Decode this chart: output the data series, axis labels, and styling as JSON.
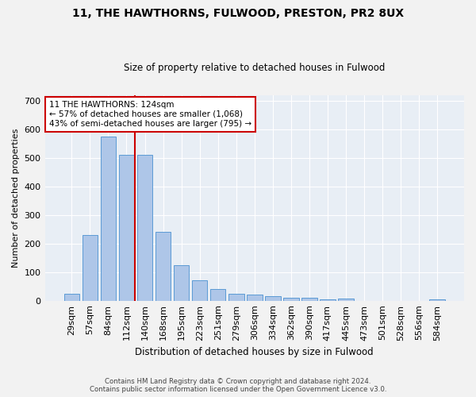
{
  "title": "11, THE HAWTHORNS, FULWOOD, PRESTON, PR2 8UX",
  "subtitle": "Size of property relative to detached houses in Fulwood",
  "xlabel": "Distribution of detached houses by size in Fulwood",
  "ylabel": "Number of detached properties",
  "categories": [
    "29sqm",
    "57sqm",
    "84sqm",
    "112sqm",
    "140sqm",
    "168sqm",
    "195sqm",
    "223sqm",
    "251sqm",
    "279sqm",
    "306sqm",
    "334sqm",
    "362sqm",
    "390sqm",
    "417sqm",
    "445sqm",
    "473sqm",
    "501sqm",
    "528sqm",
    "556sqm",
    "584sqm"
  ],
  "values": [
    25,
    230,
    575,
    510,
    510,
    240,
    125,
    70,
    40,
    25,
    20,
    15,
    10,
    10,
    5,
    8,
    0,
    0,
    0,
    0,
    5
  ],
  "bar_color": "#aec6e8",
  "bar_edgecolor": "#5b9bd5",
  "background_color": "#e8eef5",
  "grid_color": "#ffffff",
  "vline_x": 3.44,
  "vline_color": "#cc0000",
  "annotation_text": "11 THE HAWTHORNS: 124sqm\n← 57% of detached houses are smaller (1,068)\n43% of semi-detached houses are larger (795) →",
  "annotation_box_edgecolor": "#cc0000",
  "annotation_box_facecolor": "#ffffff",
  "footer_line1": "Contains HM Land Registry data © Crown copyright and database right 2024.",
  "footer_line2": "Contains public sector information licensed under the Open Government Licence v3.0.",
  "ylim": [
    0,
    720
  ],
  "yticks": [
    0,
    100,
    200,
    300,
    400,
    500,
    600,
    700
  ],
  "bar_width": 0.85,
  "fig_width": 6.0,
  "fig_height": 5.0,
  "fig_dpi": 100
}
